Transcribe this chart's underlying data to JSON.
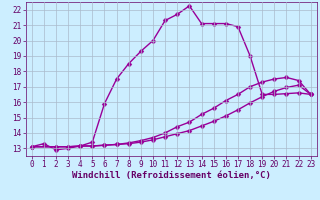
{
  "xlabel": "Windchill (Refroidissement éolien,°C)",
  "bg_color": "#cceeff",
  "line_color": "#990099",
  "xlim": [
    -0.5,
    23.5
  ],
  "ylim": [
    12.5,
    22.5
  ],
  "xticks": [
    0,
    1,
    2,
    3,
    4,
    5,
    6,
    7,
    8,
    9,
    10,
    11,
    12,
    13,
    14,
    15,
    16,
    17,
    18,
    19,
    20,
    21,
    22,
    23
  ],
  "yticks": [
    13,
    14,
    15,
    16,
    17,
    18,
    19,
    20,
    21,
    22
  ],
  "curve1_x": [
    0,
    1,
    2,
    3,
    4,
    5,
    6,
    7,
    8,
    9,
    10,
    11,
    12,
    13,
    14,
    15,
    16,
    17,
    18,
    19,
    20,
    21,
    22,
    23
  ],
  "curve1_y": [
    13.1,
    13.3,
    12.9,
    13.0,
    13.15,
    13.4,
    15.9,
    17.5,
    18.5,
    19.3,
    20.0,
    21.3,
    21.7,
    22.25,
    21.1,
    21.1,
    21.1,
    20.9,
    19.0,
    16.5,
    16.5,
    16.55,
    16.6,
    16.5
  ],
  "curve2_x": [
    0,
    2,
    3,
    4,
    5,
    6,
    7,
    8,
    9,
    10,
    11,
    12,
    13,
    14,
    15,
    16,
    17,
    18,
    19,
    20,
    21,
    22,
    23
  ],
  "curve2_y": [
    13.1,
    13.1,
    13.1,
    13.15,
    13.15,
    13.2,
    13.25,
    13.35,
    13.5,
    13.7,
    14.0,
    14.4,
    14.7,
    15.2,
    15.6,
    16.1,
    16.5,
    17.0,
    17.3,
    17.5,
    17.6,
    17.4,
    16.5
  ],
  "curve3_x": [
    0,
    2,
    3,
    4,
    5,
    6,
    7,
    8,
    9,
    10,
    11,
    12,
    13,
    14,
    15,
    16,
    17,
    18,
    19,
    20,
    21,
    22,
    23
  ],
  "curve3_y": [
    13.1,
    13.1,
    13.1,
    13.15,
    13.15,
    13.2,
    13.25,
    13.3,
    13.4,
    13.55,
    13.75,
    13.95,
    14.15,
    14.45,
    14.75,
    15.1,
    15.5,
    15.95,
    16.35,
    16.7,
    16.95,
    17.1,
    16.5
  ],
  "grid_color": "#aabbcc",
  "marker": "D",
  "markersize": 2.5,
  "linewidth": 1.0,
  "tick_labelsize": 5.5,
  "xlabel_fontsize": 6.5,
  "tick_color": "#660066",
  "grid_linewidth": 0.5
}
